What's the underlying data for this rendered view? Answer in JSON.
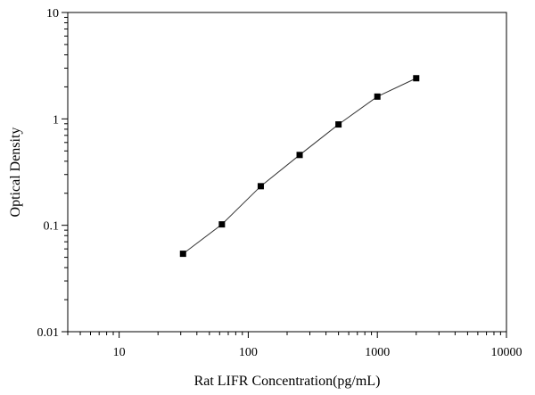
{
  "chart_data": {
    "type": "scatter",
    "title": "",
    "xlabel": "Rat LIFR Concentration(pg/mL)",
    "ylabel": "Optical Density",
    "x_scale": "log",
    "y_scale": "log",
    "xlim": [
      4,
      10000
    ],
    "ylim": [
      0.01,
      10
    ],
    "x_ticks": [
      10,
      100,
      1000,
      10000
    ],
    "x_tick_labels": [
      "10",
      "100",
      "1000",
      "10000"
    ],
    "y_ticks": [
      0.01,
      0.1,
      1,
      10
    ],
    "y_tick_labels": [
      "0.01",
      "0.1",
      "1",
      "10"
    ],
    "grid": false,
    "legend": "none",
    "series": [
      {
        "marker": "square",
        "color": "#000000",
        "line": true,
        "x": [
          31.25,
          62.5,
          125,
          250,
          500,
          1000,
          2000
        ],
        "y": [
          0.054,
          0.102,
          0.233,
          0.458,
          0.887,
          1.62,
          2.41
        ]
      }
    ]
  }
}
